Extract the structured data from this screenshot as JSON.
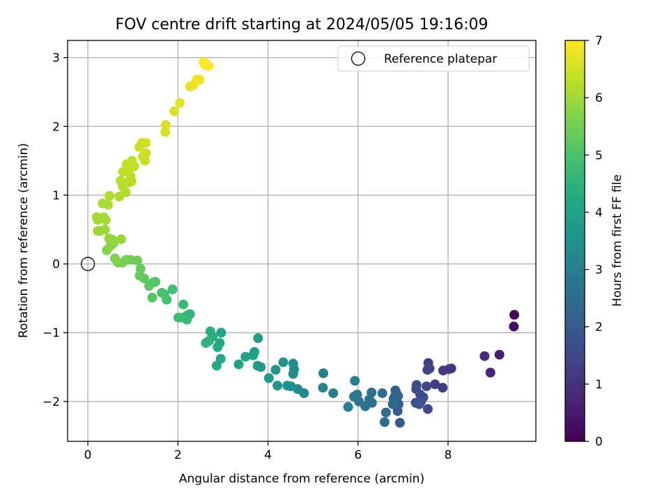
{
  "chart_data": {
    "type": "scatter",
    "title": "FOV centre drift starting at 2024/05/05 19:16:09",
    "xlabel": "Angular distance from reference (arcmin)",
    "ylabel": "Rotation from reference (arcmin)",
    "xlim": [
      -0.45,
      9.95
    ],
    "ylim": [
      -2.58,
      3.25
    ],
    "xticks": [
      0,
      2,
      4,
      6,
      8
    ],
    "yticks": [
      -2,
      -1,
      0,
      1,
      2,
      3
    ],
    "grid": true,
    "legend": {
      "placement": "top-right",
      "entries": [
        "Reference platepar"
      ]
    },
    "reference_point": {
      "x": 0,
      "y": 0,
      "label": "Reference platepar"
    },
    "colorbar": {
      "label": "Hours from first FF file",
      "range": [
        0,
        7
      ],
      "ticks": [
        0,
        1,
        2,
        3,
        4,
        5,
        6,
        7
      ],
      "colormap": "viridis"
    },
    "series": [
      {
        "points": [
          [
            9.47,
            -0.74,
            0.15
          ],
          [
            9.46,
            -0.91,
            0.25
          ],
          [
            9.14,
            -1.32,
            0.6
          ],
          [
            8.94,
            -1.58,
            0.7
          ],
          [
            8.81,
            -1.34,
            0.85
          ],
          [
            8.07,
            -1.52,
            1.05
          ],
          [
            8.02,
            -1.53,
            1.1
          ],
          [
            7.89,
            -1.55,
            1.15
          ],
          [
            7.88,
            -1.8,
            1.2
          ],
          [
            7.71,
            -1.75,
            1.25
          ],
          [
            7.56,
            -1.44,
            1.3
          ],
          [
            7.54,
            -1.54,
            1.35
          ],
          [
            7.59,
            -1.52,
            1.4
          ],
          [
            7.52,
            -1.78,
            1.42
          ],
          [
            7.55,
            -2.11,
            1.45
          ],
          [
            7.45,
            -1.94,
            1.5
          ],
          [
            7.38,
            -1.9,
            1.55
          ],
          [
            7.3,
            -1.76,
            1.6
          ],
          [
            7.29,
            -1.82,
            1.65
          ],
          [
            7.28,
            -2.02,
            1.7
          ],
          [
            7.36,
            -2.04,
            1.75
          ],
          [
            7.4,
            -2.0,
            1.8
          ],
          [
            6.93,
            -2.31,
            1.9
          ],
          [
            6.88,
            -2.14,
            1.95
          ],
          [
            6.9,
            -2.04,
            2.0
          ],
          [
            6.83,
            -1.84,
            2.05
          ],
          [
            6.79,
            -1.96,
            2.1
          ],
          [
            6.82,
            -1.92,
            2.15
          ],
          [
            6.8,
            -2.01,
            2.2
          ],
          [
            6.86,
            -1.89,
            2.25
          ],
          [
            6.89,
            -1.92,
            2.3
          ],
          [
            6.77,
            -2.04,
            2.35
          ],
          [
            6.62,
            -2.16,
            2.4
          ],
          [
            6.59,
            -2.3,
            2.45
          ],
          [
            6.54,
            -1.88,
            2.5
          ],
          [
            6.3,
            -1.87,
            2.55
          ],
          [
            6.31,
            -2.02,
            2.6
          ],
          [
            6.25,
            -1.97,
            2.65
          ],
          [
            6.16,
            -2.07,
            2.7
          ],
          [
            6.02,
            -2.0,
            2.75
          ],
          [
            5.98,
            -1.9,
            2.8
          ],
          [
            5.91,
            -1.93,
            2.85
          ],
          [
            5.93,
            -1.7,
            2.9
          ],
          [
            5.78,
            -2.08,
            2.95
          ],
          [
            5.45,
            -1.88,
            3.0
          ],
          [
            5.23,
            -1.59,
            3.05
          ],
          [
            5.22,
            -1.8,
            3.1
          ],
          [
            4.8,
            -1.88,
            3.2
          ],
          [
            4.66,
            -1.82,
            3.25
          ],
          [
            4.56,
            -1.6,
            3.3
          ],
          [
            4.58,
            -1.53,
            3.35
          ],
          [
            4.56,
            -1.45,
            3.4
          ],
          [
            4.51,
            -1.78,
            3.45
          ],
          [
            4.43,
            -1.77,
            3.5
          ],
          [
            4.34,
            -1.43,
            3.55
          ],
          [
            4.21,
            -1.77,
            3.6
          ],
          [
            4.17,
            -1.54,
            3.65
          ],
          [
            4.02,
            -1.66,
            3.7
          ],
          [
            3.84,
            -1.5,
            3.75
          ],
          [
            3.77,
            -1.48,
            3.8
          ],
          [
            3.78,
            -1.08,
            3.85
          ],
          [
            3.7,
            -1.28,
            3.9
          ],
          [
            3.67,
            -1.33,
            3.95
          ],
          [
            3.5,
            -1.35,
            4.0
          ],
          [
            3.35,
            -1.46,
            4.05
          ],
          [
            2.96,
            -1.0,
            4.1
          ],
          [
            2.95,
            -1.38,
            4.15
          ],
          [
            2.93,
            -1.15,
            4.2
          ],
          [
            2.88,
            -1.21,
            4.25
          ],
          [
            2.86,
            -1.48,
            4.3
          ],
          [
            2.77,
            -1.06,
            4.35
          ],
          [
            2.72,
            -0.98,
            4.4
          ],
          [
            2.69,
            -1.12,
            4.45
          ],
          [
            2.62,
            -1.15,
            4.5
          ],
          [
            2.27,
            -0.73,
            4.55
          ],
          [
            2.2,
            -0.75,
            4.6
          ],
          [
            2.2,
            -0.81,
            4.65
          ],
          [
            2.12,
            -0.59,
            4.7
          ],
          [
            2.09,
            -0.78,
            4.75
          ],
          [
            2.01,
            -0.78,
            4.8
          ],
          [
            1.88,
            -0.37,
            4.85
          ],
          [
            1.75,
            -0.52,
            4.9
          ],
          [
            1.7,
            -0.44,
            4.95
          ],
          [
            1.64,
            -0.42,
            5.0
          ],
          [
            1.5,
            -0.26,
            5.05
          ],
          [
            1.45,
            -0.27,
            5.1
          ],
          [
            1.43,
            -0.49,
            5.15
          ],
          [
            1.36,
            -0.32,
            5.2
          ],
          [
            1.25,
            -0.21,
            5.25
          ],
          [
            1.15,
            -0.17,
            5.3
          ],
          [
            1.17,
            -0.07,
            5.35
          ],
          [
            1.1,
            0.05,
            5.4
          ],
          [
            0.95,
            0.06,
            5.45
          ],
          [
            0.85,
            0.06,
            5.5
          ],
          [
            0.77,
            0.02,
            5.55
          ],
          [
            0.67,
            0.02,
            5.6
          ],
          [
            0.6,
            0.08,
            5.65
          ],
          [
            0.42,
            0.2,
            5.7
          ],
          [
            0.5,
            0.26,
            5.75
          ],
          [
            0.57,
            0.3,
            5.8
          ],
          [
            0.55,
            0.35,
            5.83
          ],
          [
            0.47,
            0.37,
            5.86
          ],
          [
            0.74,
            0.36,
            5.89
          ],
          [
            0.38,
            0.5,
            5.92
          ],
          [
            0.28,
            0.48,
            5.95
          ],
          [
            0.22,
            0.48,
            5.97
          ],
          [
            0.4,
            0.64,
            6.0
          ],
          [
            0.22,
            0.64,
            6.02
          ],
          [
            0.2,
            0.68,
            6.04
          ],
          [
            0.35,
            0.68,
            6.06
          ],
          [
            0.45,
            0.86,
            6.08
          ],
          [
            0.33,
            0.88,
            6.1
          ],
          [
            0.48,
            0.99,
            6.12
          ],
          [
            0.7,
            0.98,
            6.14
          ],
          [
            0.84,
            1.04,
            6.16
          ],
          [
            0.78,
            1.12,
            6.18
          ],
          [
            0.73,
            1.21,
            6.2
          ],
          [
            0.75,
            1.19,
            6.22
          ],
          [
            0.9,
            1.18,
            6.24
          ],
          [
            0.97,
            1.2,
            6.26
          ],
          [
            0.95,
            1.27,
            6.28
          ],
          [
            0.78,
            1.34,
            6.3
          ],
          [
            0.9,
            1.36,
            6.32
          ],
          [
            0.86,
            1.45,
            6.34
          ],
          [
            1.03,
            1.42,
            6.36
          ],
          [
            0.98,
            1.5,
            6.38
          ],
          [
            1.27,
            1.5,
            6.4
          ],
          [
            1.22,
            1.56,
            6.42
          ],
          [
            1.29,
            1.61,
            6.44
          ],
          [
            1.14,
            1.7,
            6.46
          ],
          [
            1.2,
            1.76,
            6.48
          ],
          [
            1.29,
            1.76,
            6.5
          ],
          [
            1.72,
            1.92,
            6.55
          ],
          [
            1.73,
            2.02,
            6.58
          ],
          [
            1.92,
            2.22,
            6.62
          ],
          [
            2.04,
            2.34,
            6.66
          ],
          [
            2.27,
            2.58,
            6.72
          ],
          [
            2.34,
            2.6,
            6.76
          ],
          [
            2.48,
            2.68,
            6.8
          ],
          [
            2.42,
            2.68,
            6.84
          ],
          [
            2.57,
            2.93,
            6.88
          ],
          [
            2.62,
            2.91,
            6.92
          ],
          [
            2.68,
            2.88,
            6.96
          ],
          [
            2.6,
            2.9,
            7.0
          ]
        ]
      }
    ]
  }
}
